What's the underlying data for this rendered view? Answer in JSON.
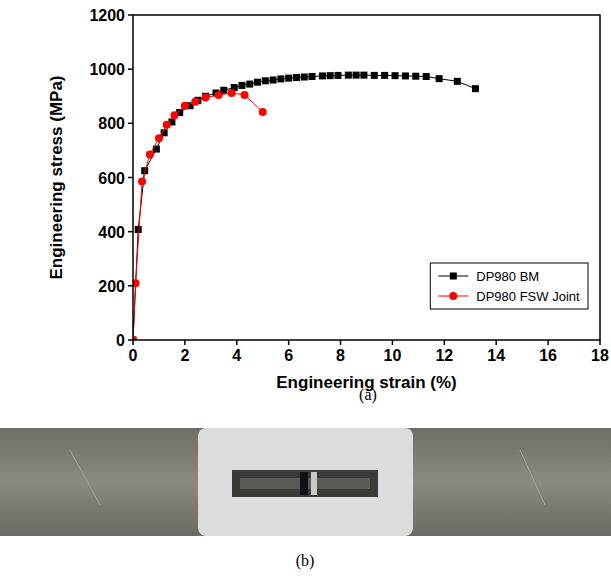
{
  "chart_data": {
    "type": "line",
    "x_label": "Engineering strain (%)",
    "y_label": "Engineering stress (MPa)",
    "xlim": [
      0,
      18
    ],
    "xticks": [
      0,
      2,
      4,
      6,
      8,
      10,
      12,
      14,
      16,
      18
    ],
    "ylim": [
      0,
      1200
    ],
    "yticks": [
      0,
      200,
      400,
      600,
      800,
      1000,
      1200
    ],
    "grid": false,
    "legend": "lower right",
    "annotations": [
      "(a)",
      "(b)"
    ],
    "series": [
      {
        "name": "DP980 BM",
        "color": "#000000",
        "marker": "square",
        "line_style": "solid",
        "x": [
          0,
          0.2,
          0.45,
          0.9,
          1.2,
          1.5,
          1.8,
          2.2,
          2.5,
          2.8,
          3.2,
          3.5,
          3.9,
          4.2,
          4.5,
          4.8,
          5.1,
          5.4,
          5.7,
          6.0,
          6.3,
          6.6,
          6.9,
          7.3,
          7.6,
          7.9,
          8.3,
          8.6,
          8.9,
          9.3,
          9.7,
          10.1,
          10.5,
          10.9,
          11.3,
          11.8,
          12.5,
          13.2
        ],
        "values": [
          0,
          408,
          625,
          705,
          765,
          805,
          840,
          865,
          885,
          900,
          912,
          922,
          932,
          940,
          945,
          952,
          957,
          960,
          964,
          967,
          969,
          971,
          973,
          975,
          976,
          977,
          978,
          978,
          978,
          977,
          977,
          976,
          975,
          974,
          973,
          965,
          955,
          928
        ]
      },
      {
        "name": "DP980 FSW Joint",
        "color": "#ff0000",
        "marker": "circle",
        "line_style": "solid",
        "x": [
          0,
          0.1,
          0.35,
          0.65,
          1.0,
          1.3,
          1.6,
          2.0,
          2.4,
          2.8,
          3.3,
          3.8,
          4.3,
          5.0
        ],
        "values": [
          0,
          210,
          585,
          685,
          745,
          795,
          830,
          865,
          880,
          895,
          905,
          912,
          905,
          842
        ]
      }
    ]
  }
}
